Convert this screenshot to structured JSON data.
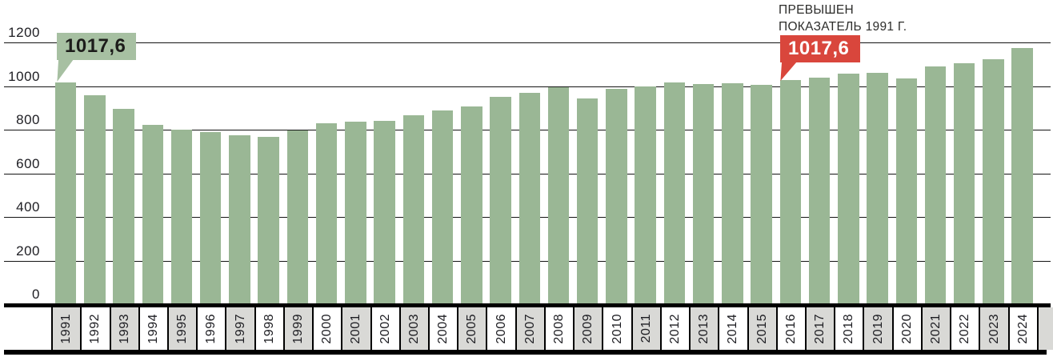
{
  "chart_data": {
    "type": "bar",
    "title": "",
    "xlabel": "",
    "ylabel": "",
    "ylim": [
      0,
      1200
    ],
    "yticks": [
      0,
      200,
      400,
      600,
      800,
      1000,
      1200
    ],
    "grid": "horizontal",
    "legend": "none",
    "categories": [
      "1991",
      "1992",
      "1993",
      "1994",
      "1995",
      "1996",
      "1997",
      "1998",
      "1999",
      "2000",
      "2001",
      "2002",
      "2003",
      "2004",
      "2005",
      "2006",
      "2007",
      "2008",
      "2009",
      "2010",
      "2011",
      "2012",
      "2013",
      "2014",
      "2015",
      "2016",
      "2017",
      "2018",
      "2019",
      "2020",
      "2021",
      "2022",
      "2023",
      "2024"
    ],
    "values": [
      1017.6,
      958,
      895,
      822,
      800,
      791,
      776,
      766,
      797,
      828,
      837,
      841,
      868,
      890,
      905,
      950,
      968,
      993,
      943,
      988,
      1000,
      1015,
      1009,
      1013,
      1007,
      1027,
      1040,
      1056,
      1059,
      1034,
      1090,
      1106,
      1122,
      1174
    ],
    "annotations": [
      {
        "year": "1991",
        "label": "1017,6",
        "style": "green-callout"
      },
      {
        "year": "2016",
        "label": "1017,6",
        "style": "red-callout",
        "note_line1": "ПРЕВЫШЕН",
        "note_line2": "ПОКАЗАТЕЛЬ 1991 Г."
      }
    ]
  },
  "colors": {
    "bar": "#9ab795",
    "green_callout": "#a7c0a2",
    "red_callout": "#d9463c",
    "gridline": "#141414",
    "axis_line": "#000000",
    "year_cell_gray": "#d9d9d6",
    "year_cell_white": "#ffffff",
    "dark_text": "#1d1d22",
    "note_text": "#2d2d2b",
    "callout_text_dark": "#1c1c1a",
    "callout_text_light": "#ffffff"
  }
}
